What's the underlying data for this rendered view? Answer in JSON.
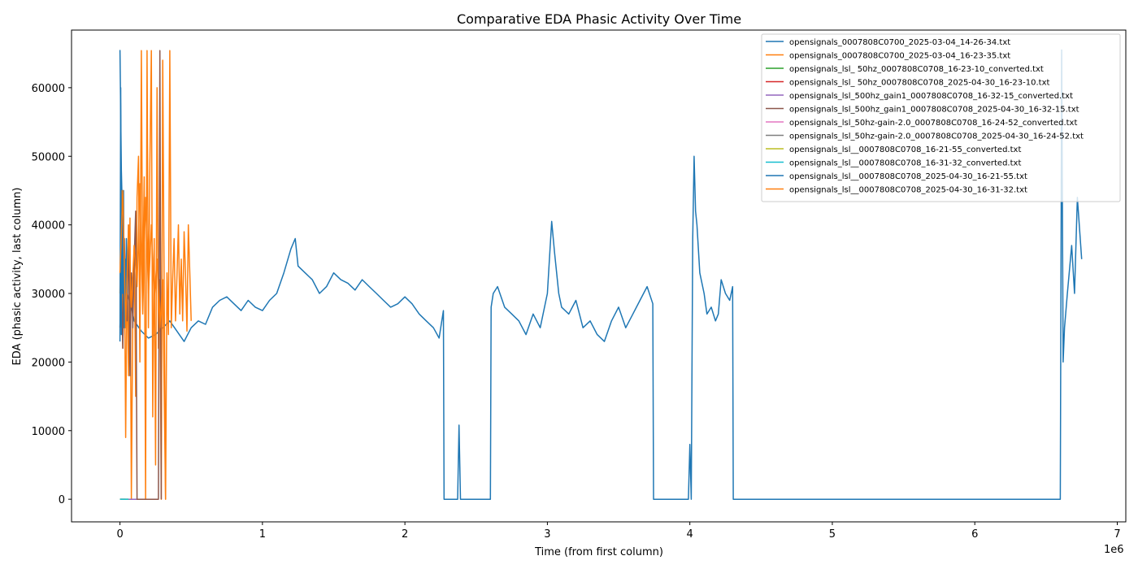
{
  "chart_data": {
    "type": "line",
    "title": "Comparative EDA Phasic Activity Over Time",
    "xlabel": "Time (from first column)",
    "ylabel": "EDA (phasic activity, last column)",
    "x_offset_label": "1e6",
    "xlim": [
      -0.34,
      7.06
    ],
    "ylim": [
      -3300,
      68400
    ],
    "x_ticks": [
      0,
      1,
      2,
      3,
      4,
      5,
      6,
      7
    ],
    "y_ticks": [
      0,
      10000,
      20000,
      30000,
      40000,
      50000,
      60000
    ],
    "grid": false,
    "legend_position": "top-right",
    "series": [
      {
        "name": "opensignals_0007808C0700_2025-03-04_14-26-34.txt",
        "color": "#1f77b4",
        "x": [
          0,
          0.01,
          0.02,
          0.03,
          0.05,
          0.08,
          0.1,
          0.15,
          0.2,
          0.25,
          0.3,
          0.35,
          0.4,
          0.45,
          0.5,
          0.55,
          0.6,
          0.65,
          0.7,
          0.75,
          0.8,
          0.85,
          0.9,
          0.95,
          1.0,
          1.05,
          1.1,
          1.15,
          1.2,
          1.23,
          1.25,
          1.3,
          1.35,
          1.4,
          1.45,
          1.5,
          1.55,
          1.6,
          1.65,
          1.7,
          1.75,
          1.8,
          1.85,
          1.9,
          1.95,
          2.0,
          2.05,
          2.1,
          2.15,
          2.2,
          2.24,
          2.27,
          2.275,
          2.3,
          2.35,
          2.37,
          2.38,
          2.39,
          2.45,
          2.5,
          2.58,
          2.6,
          2.605,
          2.62,
          2.65,
          2.7,
          2.75,
          2.8,
          2.85,
          2.9,
          2.95,
          3.0,
          3.03,
          3.05,
          3.08,
          3.1,
          3.15,
          3.2,
          3.25,
          3.3,
          3.35,
          3.4,
          3.45,
          3.5,
          3.55,
          3.6,
          3.65,
          3.7,
          3.74,
          3.745,
          3.8,
          3.9,
          3.99,
          4.0,
          4.01,
          4.02,
          4.03,
          4.04,
          4.05,
          4.07,
          4.1,
          4.12,
          4.15,
          4.18,
          4.2,
          4.22,
          4.25,
          4.28,
          4.3,
          4.305,
          4.5,
          4.76,
          4.77,
          5.0,
          5.5,
          6.0,
          6.5,
          6.6,
          6.61,
          6.62,
          6.63,
          6.65,
          6.68,
          6.7,
          6.72,
          6.75
        ],
        "y": [
          65500,
          48000,
          39000,
          35000,
          30000,
          28000,
          26000,
          24500,
          23500,
          24000,
          25000,
          26000,
          24500,
          23000,
          25000,
          26000,
          25500,
          28000,
          29000,
          29500,
          28500,
          27500,
          29000,
          28000,
          27500,
          29000,
          30000,
          33000,
          36500,
          38000,
          34000,
          33000,
          32000,
          30000,
          31000,
          33000,
          32000,
          31500,
          30500,
          32000,
          31000,
          30000,
          29000,
          28000,
          28500,
          29500,
          28500,
          27000,
          26000,
          25000,
          23500,
          27500,
          0,
          0,
          0,
          0,
          10800,
          0,
          0,
          0,
          0,
          0,
          28000,
          30000,
          31000,
          28000,
          27000,
          26000,
          24000,
          27000,
          25000,
          30000,
          40500,
          36000,
          30000,
          28000,
          27000,
          29000,
          25000,
          26000,
          24000,
          23000,
          26000,
          28000,
          25000,
          27000,
          29000,
          31000,
          28500,
          0,
          0,
          0,
          0,
          8000,
          0,
          38000,
          50000,
          42000,
          40000,
          33000,
          30000,
          27000,
          28000,
          26000,
          27000,
          32000,
          30000,
          29000,
          31000,
          0,
          0,
          0,
          0,
          0,
          0,
          0,
          0,
          0,
          65500,
          20000,
          25000,
          30000,
          37000,
          30000,
          44000,
          35000
        ]
      },
      {
        "name": "opensignals_0007808C0700_2025-03-04_16-23-35.txt",
        "color": "#ff7f0e",
        "x": [
          0,
          0.01,
          0.02,
          0.03,
          0.04,
          0.05,
          0.06,
          0.07,
          0.08,
          0.09,
          0.1,
          0.11,
          0.12,
          0.13,
          0.14,
          0.15,
          0.16,
          0.17,
          0.18,
          0.19,
          0.2,
          0.21,
          0.22,
          0.23,
          0.24,
          0.25,
          0.26,
          0.27,
          0.28,
          0.29,
          0.3,
          0.31,
          0.32,
          0.33,
          0.34,
          0.35,
          0.36,
          0.37,
          0.38,
          0.39,
          0.4,
          0.41,
          0.42,
          0.43,
          0.44,
          0.45,
          0.46,
          0.47,
          0.48,
          0.49,
          0.5
        ],
        "y": [
          30000,
          45000,
          22000,
          38000,
          9000,
          35000,
          18000,
          41000,
          0,
          28000,
          37000,
          15000,
          44000,
          50000,
          20000,
          65400,
          30000,
          47000,
          0,
          65400,
          25000,
          49000,
          65400,
          12000,
          38000,
          5000,
          60000,
          22000,
          32000,
          0,
          64000,
          32000,
          0,
          33000,
          24000,
          65400,
          25000,
          32000,
          38000,
          26000,
          32500,
          40000,
          27000,
          35000,
          26000,
          39000,
          33000,
          24500,
          40000,
          33000,
          26000
        ]
      },
      {
        "name": "opensignals_lsl_ 50hz_0007808C0708_16-23-10_converted.txt",
        "color": "#2ca02c",
        "x": [
          0,
          0.02,
          0.04,
          0.06
        ],
        "y": [
          0,
          0,
          0,
          0
        ]
      },
      {
        "name": "opensignals_lsl_ 50hz_0007808C0708_2025-04-30_16-23-10.txt",
        "color": "#d62728",
        "x": [
          0,
          0.02,
          0.04,
          0.06
        ],
        "y": [
          0,
          0,
          0,
          0
        ]
      },
      {
        "name": "opensignals_lsl_500hz_gain1_0007808C0708_16-32-15_converted.txt",
        "color": "#9467bd",
        "x": [
          0,
          0.04,
          0.08,
          0.12
        ],
        "y": [
          0,
          0,
          0,
          0
        ]
      },
      {
        "name": "opensignals_lsl_500hz_gain1_0007808C0708_2025-04-30_16-32-15.txt",
        "color": "#8c564b",
        "x": [
          0,
          0.01,
          0.02,
          0.03,
          0.04,
          0.05,
          0.06,
          0.07,
          0.08,
          0.09,
          0.1,
          0.11,
          0.12,
          0.13,
          0.2,
          0.27,
          0.28,
          0.29
        ],
        "y": [
          25000,
          32000,
          22000,
          38000,
          30000,
          26000,
          40000,
          18000,
          33000,
          25000,
          35000,
          42000,
          0,
          0,
          0,
          0,
          65400,
          0
        ]
      },
      {
        "name": "opensignals_lsl_50hz-gain-2.0_0007808C0708_16-24-52_converted.txt",
        "color": "#e377c2",
        "x": [
          0,
          0.02,
          0.04
        ],
        "y": [
          0,
          0,
          0
        ]
      },
      {
        "name": "opensignals_lsl_50hz-gain-2.0_0007808C0708_2025-04-30_16-24-52.txt",
        "color": "#7f7f7f",
        "x": [
          0,
          0.02,
          0.04
        ],
        "y": [
          0,
          0,
          0
        ]
      },
      {
        "name": "opensignals_lsl__0007808C0708_16-21-55_converted.txt",
        "color": "#bcbd22",
        "x": [
          0,
          0.02,
          0.04,
          0.06
        ],
        "y": [
          0,
          0,
          0,
          0
        ]
      },
      {
        "name": "opensignals_lsl__0007808C0708_16-31-32_converted.txt",
        "color": "#17becf",
        "x": [
          0,
          0.02,
          0.04,
          0.06
        ],
        "y": [
          0,
          0,
          0,
          0
        ]
      },
      {
        "name": "opensignals_lsl__0007808C0708_2025-04-30_16-21-55.txt",
        "color": "#1f77b4",
        "x": [
          0,
          0.005,
          0.01,
          0.015,
          0.02,
          0.025,
          0.03,
          0.035,
          0.04,
          0.045,
          0.05
        ],
        "y": [
          23000,
          60000,
          24000,
          40000,
          30000,
          45000,
          25000,
          35000,
          28000,
          38000,
          30000
        ]
      },
      {
        "name": "opensignals_lsl__0007808C0708_2025-04-30_16-31-32.txt",
        "color": "#ff7f0e",
        "x": [
          0,
          0.02,
          0.04,
          0.06,
          0.08,
          0.1,
          0.12,
          0.14,
          0.16,
          0.18,
          0.2,
          0.22,
          0.24,
          0.26,
          0.28,
          0.3,
          0.32
        ],
        "y": [
          33000,
          45000,
          25000,
          40000,
          28000,
          37000,
          31000,
          46000,
          27000,
          44000,
          30000,
          40000,
          29000,
          35000,
          25000,
          32000,
          0
        ]
      }
    ]
  }
}
